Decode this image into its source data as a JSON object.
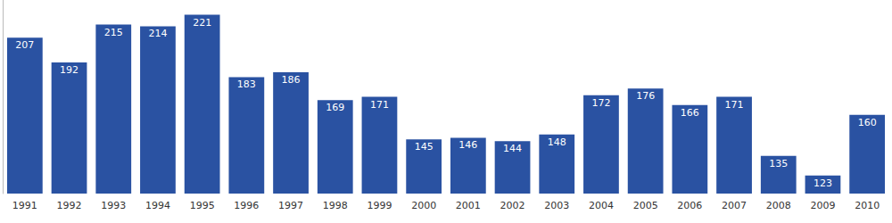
{
  "chart_data": {
    "type": "bar",
    "categories": [
      "1991",
      "1992",
      "1993",
      "1994",
      "1995",
      "1996",
      "1997",
      "1998",
      "1999",
      "2000",
      "2001",
      "2002",
      "2003",
      "2004",
      "2005",
      "2006",
      "2007",
      "2008",
      "2009",
      "2010"
    ],
    "values": [
      207,
      192,
      215,
      214,
      221,
      183,
      186,
      169,
      171,
      145,
      146,
      144,
      148,
      172,
      176,
      166,
      171,
      135,
      123,
      160
    ],
    "color": "#2a52a2",
    "ylim": [
      112,
      230
    ],
    "yticks": [],
    "grid": false,
    "data_labels": true,
    "tick_labels": "x"
  }
}
